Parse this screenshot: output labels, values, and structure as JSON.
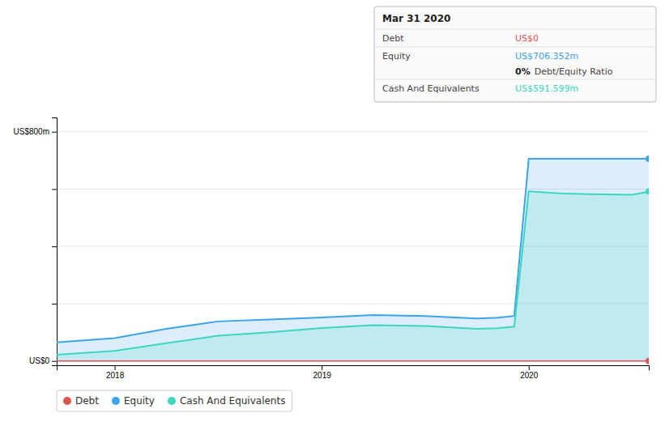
{
  "chart_data": {
    "type": "area",
    "series": [
      {
        "name": "Debt",
        "type": "line",
        "color": "#e05252",
        "x": [
          2017.72,
          2020.58
        ],
        "values": [
          0,
          0
        ]
      },
      {
        "name": "Equity",
        "type": "area",
        "color": "#3ba3e8",
        "x": [
          2017.72,
          2018.0,
          2018.25,
          2018.5,
          2018.75,
          2019.0,
          2019.25,
          2019.5,
          2019.75,
          2019.85,
          2019.93,
          2020.0,
          2020.15,
          2020.3,
          2020.5,
          2020.58
        ],
        "values": [
          65,
          80,
          112,
          138,
          145,
          152,
          160,
          157,
          148,
          151,
          157,
          706,
          706,
          706,
          706,
          706
        ]
      },
      {
        "name": "Cash And Equivalents",
        "type": "area",
        "color": "#3dd6c0",
        "x": [
          2017.72,
          2018.0,
          2018.25,
          2018.5,
          2018.75,
          2019.0,
          2019.25,
          2019.5,
          2019.75,
          2019.85,
          2019.93,
          2020.0,
          2020.15,
          2020.3,
          2020.5,
          2020.58
        ],
        "values": [
          22,
          35,
          62,
          88,
          100,
          115,
          125,
          122,
          112,
          114,
          120,
          592,
          585,
          582,
          580,
          591
        ]
      }
    ],
    "xlim": [
      2017.72,
      2020.58
    ],
    "xticks": [
      2018,
      2019,
      2020
    ],
    "ylim": [
      -15,
      850
    ],
    "yticks": [
      {
        "value": 0,
        "label": "US$0"
      },
      {
        "value": 200,
        "label": null
      },
      {
        "value": 400,
        "label": null
      },
      {
        "value": 600,
        "label": null
      },
      {
        "value": 800,
        "label": "US$800m"
      }
    ],
    "grid": true,
    "legend": "lower left",
    "info_box": {
      "title": "Mar 31 2020",
      "rows": [
        {
          "label": "Debt",
          "value": "US$0"
        },
        {
          "label": "Equity",
          "value": "US$706.352m"
        },
        {
          "label": "Debt/Equity Ratio",
          "value": "0%"
        },
        {
          "label": "Cash And Equivalents",
          "value": "US$591.599m"
        }
      ]
    }
  }
}
